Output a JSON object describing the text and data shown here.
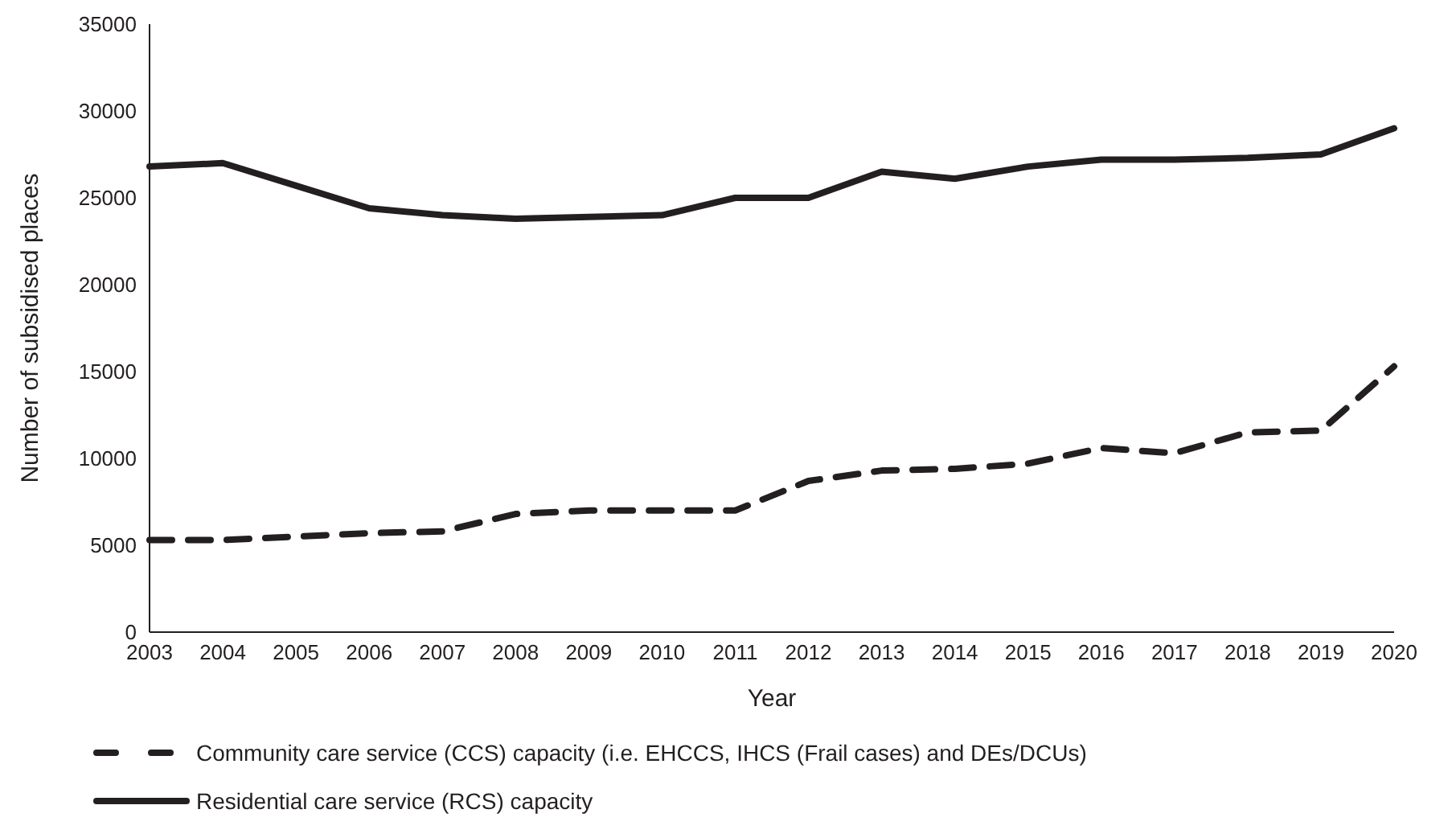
{
  "chart_data": {
    "type": "line",
    "xlabel": "Year",
    "ylabel": "Number of subsidised places",
    "categories": [
      "2003",
      "2004",
      "2005",
      "2006",
      "2007",
      "2008",
      "2009",
      "2010",
      "2011",
      "2012",
      "2013",
      "2014",
      "2015",
      "2016",
      "2017",
      "2018",
      "2019",
      "2020"
    ],
    "series": [
      {
        "name": "Community care service (CCS) capacity (i.e. EHCCS, IHCS (Frail cases) and DEs/DCUs)",
        "color": "#231f20",
        "line_style": "dashed",
        "values": [
          5300,
          5300,
          5500,
          5700,
          5800,
          6800,
          7000,
          7000,
          7000,
          8700,
          9300,
          9400,
          9700,
          10600,
          10300,
          11500,
          11600,
          15300
        ]
      },
      {
        "name": "Residential care service (RCS) capacity",
        "color": "#231f20",
        "line_style": "solid",
        "values": [
          26800,
          27000,
          25700,
          24400,
          24000,
          23800,
          23900,
          24000,
          25000,
          25000,
          26500,
          26100,
          26800,
          27200,
          27200,
          27300,
          27500,
          29000
        ]
      }
    ],
    "ylim": [
      0,
      35000
    ],
    "yticks": [
      0,
      5000,
      10000,
      15000,
      20000,
      25000,
      30000,
      35000
    ],
    "grid": false,
    "legend": "bottom",
    "marker": "none"
  }
}
